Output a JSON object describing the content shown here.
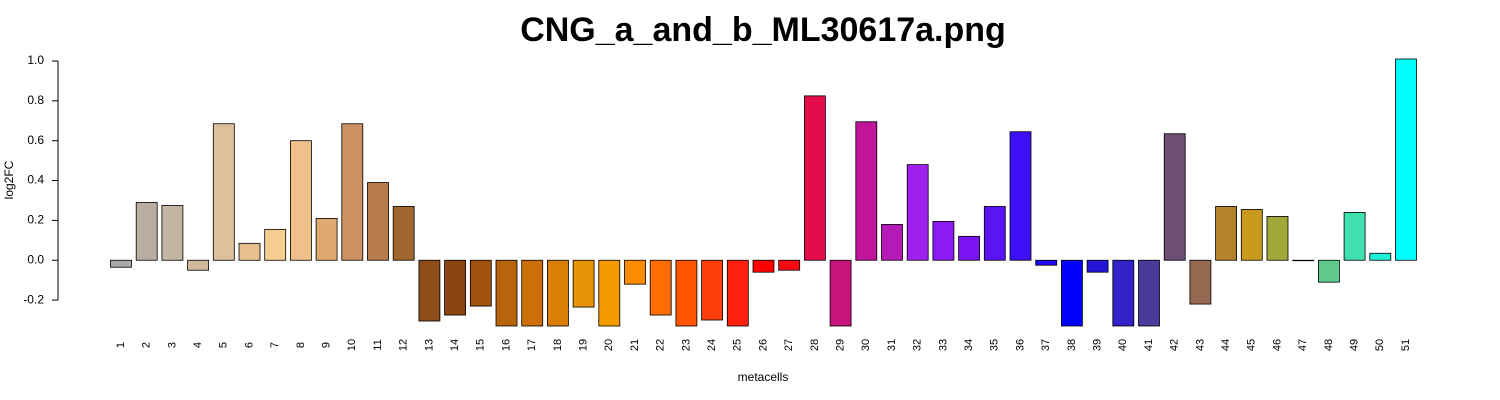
{
  "chart_data": {
    "type": "bar",
    "title": "CNG_a_and_b_ML30617a.png",
    "x_label": "metacells",
    "y_label": "log2FC",
    "categories": [
      "1",
      "2",
      "3",
      "4",
      "5",
      "6",
      "7",
      "8",
      "9",
      "10",
      "11",
      "12",
      "13",
      "14",
      "15",
      "16",
      "17",
      "18",
      "19",
      "20",
      "21",
      "22",
      "23",
      "24",
      "25",
      "26",
      "27",
      "28",
      "29",
      "30",
      "31",
      "32",
      "33",
      "34",
      "35",
      "36",
      "37",
      "38",
      "39",
      "40",
      "41",
      "42",
      "43",
      "44",
      "45",
      "46",
      "47",
      "48",
      "49",
      "50",
      "51"
    ],
    "values": [
      -0.035,
      0.29,
      0.275,
      -0.05,
      0.685,
      0.085,
      0.155,
      0.6,
      0.21,
      0.685,
      0.39,
      0.27,
      -0.305,
      -0.275,
      -0.23,
      -0.33,
      -0.33,
      -0.33,
      -0.235,
      -0.33,
      -0.12,
      -0.275,
      -0.33,
      -0.3,
      -0.33,
      -0.06,
      -0.05,
      0.825,
      -0.33,
      0.695,
      0.18,
      0.48,
      0.195,
      0.12,
      0.27,
      0.645,
      -0.025,
      -0.33,
      -0.06,
      -0.33,
      -0.33,
      0.635,
      -0.22,
      0.27,
      0.255,
      0.22,
      0,
      -0.11,
      0.24,
      0.035,
      1.01
    ],
    "colors": [
      "#a9a9a9",
      "#b8ada0",
      "#c5b5a3",
      "#d2b89a",
      "#dec09a",
      "#e6c18f",
      "#f5cd8f",
      "#efc08a",
      "#dfaa72",
      "#cc9260",
      "#b87a48",
      "#a0672f",
      "#8f4d1a",
      "#8b4513",
      "#a0520f",
      "#b8640b",
      "#cd6f08",
      "#d97f06",
      "#e69405",
      "#f59a00",
      "#ff8c00",
      "#ff6c00",
      "#ff5500",
      "#ff3f0a",
      "#ff2010",
      "#ff0000",
      "#f80a14",
      "#e30b4a",
      "#c8127c",
      "#c0149a",
      "#b41ab5",
      "#a020f0",
      "#8c1af5",
      "#7a14f5",
      "#5a14f5",
      "#3c0ff5",
      "#1e0af5",
      "#0000ff",
      "#2214d4",
      "#3322c8",
      "#4b3a9a",
      "#6e4e74",
      "#966a50",
      "#b48228",
      "#c89b1e",
      "#a3a83a",
      "#6fb85c",
      "#5fc88a",
      "#3fe0b0",
      "#20f0d8",
      "#00ffff"
    ],
    "ylim": [
      -0.33,
      1.01
    ],
    "yticks": [
      -0.2,
      {
        "value": 0,
        "label": "0.0"
      },
      0.2,
      0.4,
      0.6,
      0.8,
      {
        "value": 1,
        "label": "1.0"
      }
    ]
  }
}
